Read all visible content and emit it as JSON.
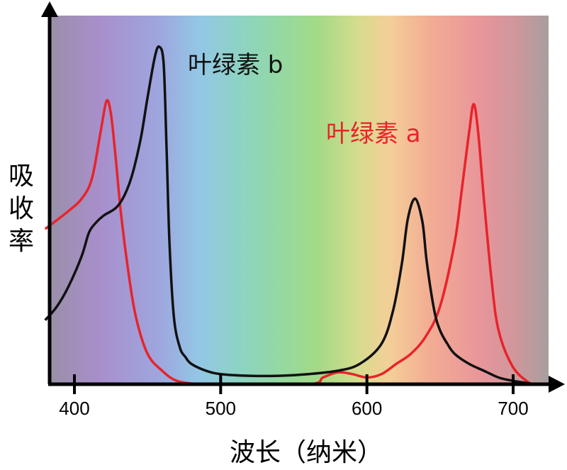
{
  "chart_data": {
    "type": "line",
    "xlabel": "波长（纳米）",
    "ylabel": "吸收率",
    "x_ticks": [
      400,
      500,
      600,
      700
    ],
    "xlim": [
      380,
      730
    ],
    "ylim": [
      0,
      1
    ],
    "grid": false,
    "background": "visible light spectrum gradient (violet to red)",
    "series": [
      {
        "name": "叶绿素 a",
        "color": "#e8232a",
        "x": [
          380,
          395,
          405,
          412,
          418,
          422,
          425,
          428,
          432,
          437,
          442,
          450,
          460,
          470,
          485,
          495,
          500,
          560,
          570,
          580,
          590,
          600,
          610,
          620,
          630,
          640,
          650,
          660,
          665,
          670,
          673,
          676,
          680,
          685,
          690,
          700,
          712
        ],
        "y": [
          0.46,
          0.51,
          0.55,
          0.61,
          0.75,
          0.84,
          0.8,
          0.68,
          0.5,
          0.33,
          0.2,
          0.09,
          0.04,
          0.01,
          0.0,
          0.0,
          0.0,
          0.0,
          0.02,
          0.035,
          0.03,
          0.02,
          0.03,
          0.06,
          0.09,
          0.14,
          0.23,
          0.42,
          0.58,
          0.75,
          0.83,
          0.75,
          0.55,
          0.32,
          0.16,
          0.05,
          0.0
        ]
      },
      {
        "name": "叶绿素 b",
        "color": "#111111",
        "x": [
          380,
          388,
          396,
          405,
          410,
          415,
          420,
          430,
          438,
          445,
          450,
          455,
          458,
          461,
          463,
          465,
          468,
          472,
          476,
          480,
          490,
          500,
          520,
          540,
          560,
          580,
          595,
          610,
          618,
          624,
          628,
          633,
          638,
          641,
          646,
          650,
          655,
          660,
          670,
          680,
          690,
          700,
          715
        ],
        "y": [
          0.19,
          0.23,
          0.29,
          0.38,
          0.45,
          0.48,
          0.5,
          0.53,
          0.6,
          0.72,
          0.85,
          0.97,
          1.0,
          0.95,
          0.7,
          0.42,
          0.2,
          0.11,
          0.08,
          0.06,
          0.04,
          0.03,
          0.025,
          0.025,
          0.03,
          0.04,
          0.06,
          0.12,
          0.22,
          0.36,
          0.49,
          0.55,
          0.48,
          0.36,
          0.22,
          0.16,
          0.12,
          0.09,
          0.06,
          0.04,
          0.02,
          0.01,
          0.0
        ]
      }
    ]
  }
}
